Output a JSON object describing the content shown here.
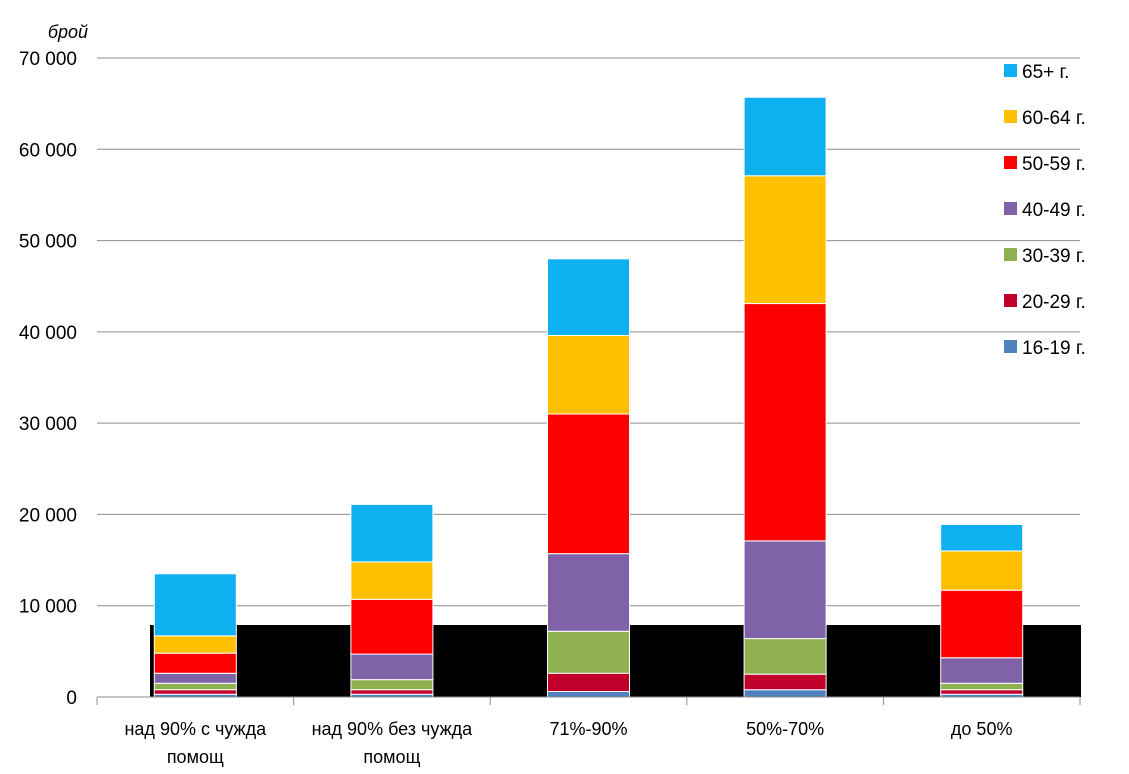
{
  "chart_data": {
    "type": "bar",
    "stacked": true,
    "ylabel": "брой",
    "ylim": [
      0,
      70000
    ],
    "yticks": [
      0,
      10000,
      20000,
      30000,
      40000,
      50000,
      60000,
      70000
    ],
    "ytick_labels": [
      "0",
      "10 000",
      "20 000",
      "30 000",
      "40 000",
      "50 000",
      "60 000",
      "70 000"
    ],
    "grid": true,
    "legend_position": "right",
    "categories": [
      [
        "над 90% с чужда",
        "помощ"
      ],
      [
        "над 90% без чужда",
        "помощ"
      ],
      [
        "71%-90%"
      ],
      [
        "50%-70%"
      ],
      [
        "до 50%"
      ]
    ],
    "series": [
      {
        "name": "16-19 г.",
        "color": "#4f81bd",
        "values": [
          300,
          300,
          600,
          800,
          300
        ]
      },
      {
        "name": "20-29 г.",
        "color": "#c0002a",
        "values": [
          500,
          500,
          2000,
          1700,
          500
        ]
      },
      {
        "name": "30-39 г.",
        "color": "#8fb04f",
        "values": [
          700,
          1100,
          4600,
          3900,
          700
        ]
      },
      {
        "name": "40-49 г.",
        "color": "#7f62a8",
        "values": [
          1100,
          2800,
          8500,
          10700,
          2800
        ]
      },
      {
        "name": "50-59 г.",
        "color": "#ff0000",
        "values": [
          2200,
          6000,
          15300,
          26000,
          7400
        ]
      },
      {
        "name": "60-64 г.",
        "color": "#ffc000",
        "values": [
          1900,
          4100,
          8600,
          14000,
          4300
        ]
      },
      {
        "name": "65+ г.",
        "color": "#0fb0f0",
        "values": [
          6800,
          6300,
          8400,
          8600,
          2900
        ]
      }
    ],
    "redaction_box": {
      "color": "#000000"
    }
  }
}
